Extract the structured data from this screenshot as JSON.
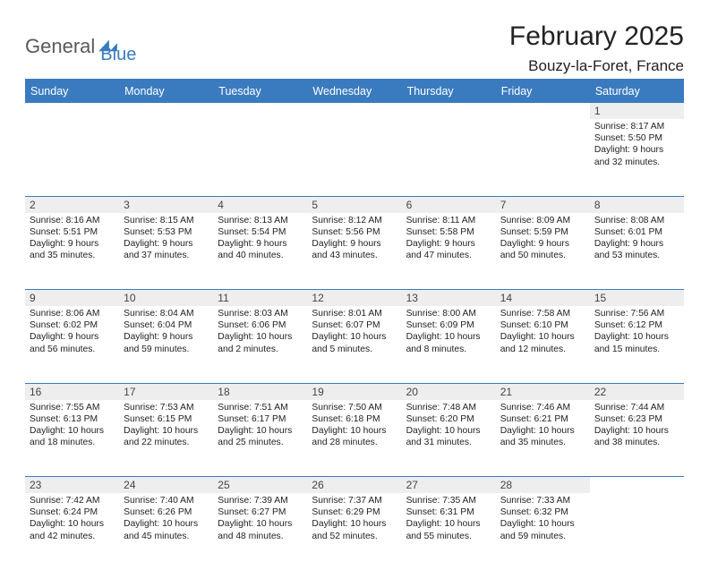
{
  "brand": {
    "part1": "General",
    "part2": "Blue"
  },
  "title": "February 2025",
  "location": "Bouzy-la-Foret, France",
  "colors": {
    "accent": "#3a7bbf",
    "header_text": "#ffffff",
    "daynum_bg": "#eeeeee",
    "body_text": "#222222",
    "page_bg": "#ffffff"
  },
  "day_headers": [
    "Sunday",
    "Monday",
    "Tuesday",
    "Wednesday",
    "Thursday",
    "Friday",
    "Saturday"
  ],
  "weeks": [
    [
      {
        "num": "",
        "lines": []
      },
      {
        "num": "",
        "lines": []
      },
      {
        "num": "",
        "lines": []
      },
      {
        "num": "",
        "lines": []
      },
      {
        "num": "",
        "lines": []
      },
      {
        "num": "",
        "lines": []
      },
      {
        "num": "1",
        "lines": [
          "Sunrise: 8:17 AM",
          "Sunset: 5:50 PM",
          "Daylight: 9 hours and 32 minutes."
        ]
      }
    ],
    [
      {
        "num": "2",
        "lines": [
          "Sunrise: 8:16 AM",
          "Sunset: 5:51 PM",
          "Daylight: 9 hours and 35 minutes."
        ]
      },
      {
        "num": "3",
        "lines": [
          "Sunrise: 8:15 AM",
          "Sunset: 5:53 PM",
          "Daylight: 9 hours and 37 minutes."
        ]
      },
      {
        "num": "4",
        "lines": [
          "Sunrise: 8:13 AM",
          "Sunset: 5:54 PM",
          "Daylight: 9 hours and 40 minutes."
        ]
      },
      {
        "num": "5",
        "lines": [
          "Sunrise: 8:12 AM",
          "Sunset: 5:56 PM",
          "Daylight: 9 hours and 43 minutes."
        ]
      },
      {
        "num": "6",
        "lines": [
          "Sunrise: 8:11 AM",
          "Sunset: 5:58 PM",
          "Daylight: 9 hours and 47 minutes."
        ]
      },
      {
        "num": "7",
        "lines": [
          "Sunrise: 8:09 AM",
          "Sunset: 5:59 PM",
          "Daylight: 9 hours and 50 minutes."
        ]
      },
      {
        "num": "8",
        "lines": [
          "Sunrise: 8:08 AM",
          "Sunset: 6:01 PM",
          "Daylight: 9 hours and 53 minutes."
        ]
      }
    ],
    [
      {
        "num": "9",
        "lines": [
          "Sunrise: 8:06 AM",
          "Sunset: 6:02 PM",
          "Daylight: 9 hours and 56 minutes."
        ]
      },
      {
        "num": "10",
        "lines": [
          "Sunrise: 8:04 AM",
          "Sunset: 6:04 PM",
          "Daylight: 9 hours and 59 minutes."
        ]
      },
      {
        "num": "11",
        "lines": [
          "Sunrise: 8:03 AM",
          "Sunset: 6:06 PM",
          "Daylight: 10 hours and 2 minutes."
        ]
      },
      {
        "num": "12",
        "lines": [
          "Sunrise: 8:01 AM",
          "Sunset: 6:07 PM",
          "Daylight: 10 hours and 5 minutes."
        ]
      },
      {
        "num": "13",
        "lines": [
          "Sunrise: 8:00 AM",
          "Sunset: 6:09 PM",
          "Daylight: 10 hours and 8 minutes."
        ]
      },
      {
        "num": "14",
        "lines": [
          "Sunrise: 7:58 AM",
          "Sunset: 6:10 PM",
          "Daylight: 10 hours and 12 minutes."
        ]
      },
      {
        "num": "15",
        "lines": [
          "Sunrise: 7:56 AM",
          "Sunset: 6:12 PM",
          "Daylight: 10 hours and 15 minutes."
        ]
      }
    ],
    [
      {
        "num": "16",
        "lines": [
          "Sunrise: 7:55 AM",
          "Sunset: 6:13 PM",
          "Daylight: 10 hours and 18 minutes."
        ]
      },
      {
        "num": "17",
        "lines": [
          "Sunrise: 7:53 AM",
          "Sunset: 6:15 PM",
          "Daylight: 10 hours and 22 minutes."
        ]
      },
      {
        "num": "18",
        "lines": [
          "Sunrise: 7:51 AM",
          "Sunset: 6:17 PM",
          "Daylight: 10 hours and 25 minutes."
        ]
      },
      {
        "num": "19",
        "lines": [
          "Sunrise: 7:50 AM",
          "Sunset: 6:18 PM",
          "Daylight: 10 hours and 28 minutes."
        ]
      },
      {
        "num": "20",
        "lines": [
          "Sunrise: 7:48 AM",
          "Sunset: 6:20 PM",
          "Daylight: 10 hours and 31 minutes."
        ]
      },
      {
        "num": "21",
        "lines": [
          "Sunrise: 7:46 AM",
          "Sunset: 6:21 PM",
          "Daylight: 10 hours and 35 minutes."
        ]
      },
      {
        "num": "22",
        "lines": [
          "Sunrise: 7:44 AM",
          "Sunset: 6:23 PM",
          "Daylight: 10 hours and 38 minutes."
        ]
      }
    ],
    [
      {
        "num": "23",
        "lines": [
          "Sunrise: 7:42 AM",
          "Sunset: 6:24 PM",
          "Daylight: 10 hours and 42 minutes."
        ]
      },
      {
        "num": "24",
        "lines": [
          "Sunrise: 7:40 AM",
          "Sunset: 6:26 PM",
          "Daylight: 10 hours and 45 minutes."
        ]
      },
      {
        "num": "25",
        "lines": [
          "Sunrise: 7:39 AM",
          "Sunset: 6:27 PM",
          "Daylight: 10 hours and 48 minutes."
        ]
      },
      {
        "num": "26",
        "lines": [
          "Sunrise: 7:37 AM",
          "Sunset: 6:29 PM",
          "Daylight: 10 hours and 52 minutes."
        ]
      },
      {
        "num": "27",
        "lines": [
          "Sunrise: 7:35 AM",
          "Sunset: 6:31 PM",
          "Daylight: 10 hours and 55 minutes."
        ]
      },
      {
        "num": "28",
        "lines": [
          "Sunrise: 7:33 AM",
          "Sunset: 6:32 PM",
          "Daylight: 10 hours and 59 minutes."
        ]
      },
      {
        "num": "",
        "lines": []
      }
    ]
  ]
}
